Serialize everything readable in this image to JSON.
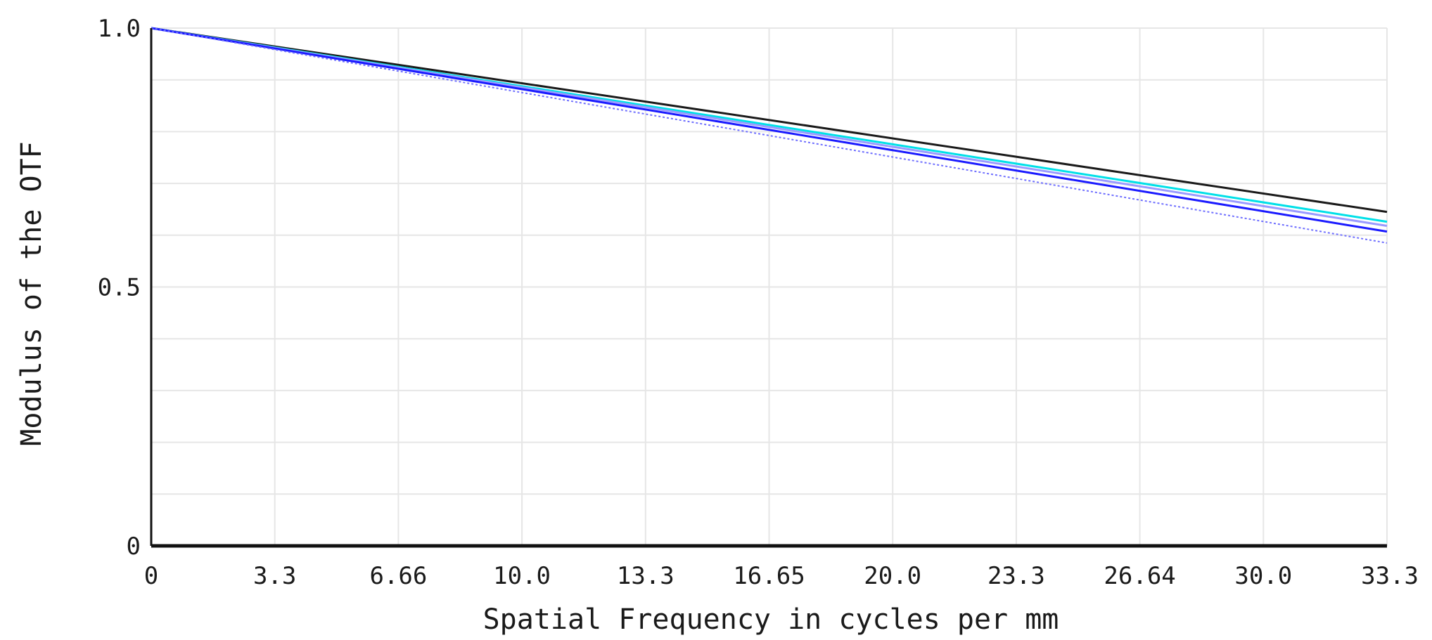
{
  "chart_data": {
    "type": "line",
    "xlabel": "Spatial Frequency in cycles per mm",
    "ylabel": "Modulus of the OTF",
    "xlim": [
      0,
      33.3
    ],
    "ylim": [
      0,
      1.0
    ],
    "x_ticks": [
      "0",
      "3.3",
      "6.66",
      "10.0",
      "13.3",
      "16.65",
      "20.0",
      "23.3",
      "26.64",
      "30.0",
      "33.3"
    ],
    "y_ticks": [
      "0",
      "0.5",
      "1.0"
    ],
    "grid": true,
    "legend": "none",
    "series": [
      {
        "color": "#1a1a1a",
        "style": "solid",
        "x": [
          0,
          33.3
        ],
        "y": [
          1.0,
          0.645
        ]
      },
      {
        "color": "#00e0e8",
        "style": "solid",
        "x": [
          0,
          33.3
        ],
        "y": [
          1.0,
          0.626
        ]
      },
      {
        "color": "#9a9aff",
        "style": "solid",
        "x": [
          0,
          33.3
        ],
        "y": [
          1.0,
          0.618
        ]
      },
      {
        "color": "#1a1aff",
        "style": "solid",
        "x": [
          0,
          33.3
        ],
        "y": [
          1.0,
          0.607
        ]
      },
      {
        "color": "#6f6fff",
        "style": "dotted",
        "x": [
          0,
          33.3
        ],
        "y": [
          1.0,
          0.585
        ]
      }
    ]
  }
}
